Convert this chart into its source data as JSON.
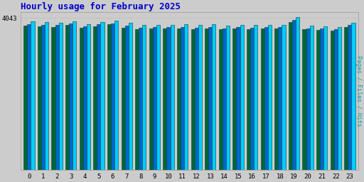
{
  "title": "Hourly usage for February 2025",
  "title_color": "#0000cc",
  "title_fontsize": 9,
  "ylabel": "Pages / Files / Hits",
  "ylabel_color": "#00aaaa",
  "background_color": "#cccccc",
  "plot_bg_color": "#cccccc",
  "hours": [
    0,
    1,
    2,
    3,
    4,
    5,
    6,
    7,
    8,
    9,
    10,
    11,
    12,
    13,
    14,
    15,
    16,
    17,
    18,
    19,
    20,
    21,
    22,
    23
  ],
  "ytick_label": "4043",
  "ytick_val": 4043,
  "hits": [
    3950,
    3930,
    3920,
    3960,
    3880,
    3930,
    3980,
    3910,
    3850,
    3860,
    3860,
    3870,
    3850,
    3870,
    3840,
    3860,
    3850,
    3860,
    3860,
    4060,
    3840,
    3820,
    3800,
    3910
  ],
  "files": [
    3880,
    3860,
    3850,
    3890,
    3820,
    3870,
    3900,
    3840,
    3790,
    3800,
    3800,
    3810,
    3790,
    3810,
    3770,
    3800,
    3790,
    3800,
    3800,
    3990,
    3770,
    3760,
    3740,
    3850
  ],
  "pages": [
    3840,
    3820,
    3810,
    3850,
    3780,
    3820,
    3870,
    3790,
    3750,
    3760,
    3760,
    3770,
    3750,
    3770,
    3740,
    3760,
    3750,
    3760,
    3760,
    3940,
    3740,
    3720,
    3700,
    3810
  ],
  "hits_color": "#00ccff",
  "files_color": "#0066cc",
  "pages_color": "#006633",
  "bar_edge_color": "#004444",
  "ylim_min": 0,
  "ylim_max": 4200,
  "bar_width": 0.26,
  "bar_gap": 0.0
}
